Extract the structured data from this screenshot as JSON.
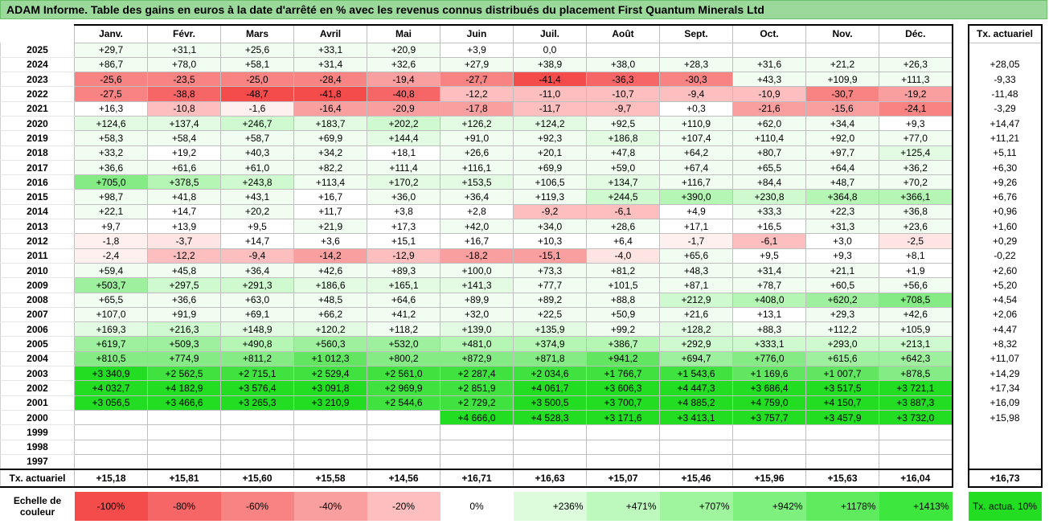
{
  "title": "ADAM Informe. Table des gains en euros à la date d'arrêté en % avec les revenus connus distribués du placement First Quantum Minerals Ltd",
  "months": [
    "Janv.",
    "Févr.",
    "Mars",
    "Avril",
    "Mai",
    "Juin",
    "Juil.",
    "Août",
    "Sept.",
    "Oct.",
    "Nov.",
    "Déc."
  ],
  "tx_header": "Tx. actuariel",
  "rows": [
    {
      "year": "2025",
      "tx": "",
      "cells": [
        "+29,7",
        "+31,1",
        "+25,6",
        "+33,1",
        "+20,9",
        "+3,9",
        "0,0",
        "",
        "",
        "",
        "",
        ""
      ]
    },
    {
      "year": "2024",
      "tx": "+28,05",
      "cells": [
        "+86,7",
        "+78,0",
        "+58,1",
        "+31,4",
        "+32,6",
        "+27,9",
        "+38,9",
        "+38,0",
        "+28,3",
        "+31,6",
        "+21,2",
        "+26,3"
      ]
    },
    {
      "year": "2023",
      "tx": "-9,33",
      "cells": [
        "-25,6",
        "-23,5",
        "-25,0",
        "-28,4",
        "-19,4",
        "-27,7",
        "-41,4",
        "-36,3",
        "-30,3",
        "+43,3",
        "+109,9",
        "+111,3"
      ]
    },
    {
      "year": "2022",
      "tx": "-11,48",
      "cells": [
        "-27,5",
        "-38,8",
        "-48,7",
        "-41,8",
        "-40,8",
        "-12,2",
        "-11,0",
        "-10,7",
        "-9,4",
        "-10,9",
        "-30,7",
        "-19,2"
      ]
    },
    {
      "year": "2021",
      "tx": "-3,29",
      "cells": [
        "+16,3",
        "-10,8",
        "-1,6",
        "-16,4",
        "-20,9",
        "-17,8",
        "-11,7",
        "-9,7",
        "+0,3",
        "-21,6",
        "-15,6",
        "-24,1"
      ]
    },
    {
      "year": "2020",
      "tx": "+14,47",
      "cells": [
        "+124,6",
        "+137,4",
        "+246,7",
        "+183,7",
        "+202,2",
        "+126,2",
        "+124,2",
        "+92,5",
        "+110,9",
        "+62,0",
        "+34,4",
        "+9,3"
      ]
    },
    {
      "year": "2019",
      "tx": "+11,21",
      "cells": [
        "+58,3",
        "+58,4",
        "+58,7",
        "+69,9",
        "+144,4",
        "+91,0",
        "+92,3",
        "+186,8",
        "+107,4",
        "+110,4",
        "+92,0",
        "+77,0"
      ]
    },
    {
      "year": "2018",
      "tx": "+5,11",
      "cells": [
        "+33,2",
        "+19,2",
        "+40,3",
        "+34,2",
        "+18,1",
        "+26,6",
        "+20,1",
        "+47,8",
        "+64,2",
        "+80,7",
        "+97,7",
        "+125,4"
      ]
    },
    {
      "year": "2017",
      "tx": "+6,30",
      "cells": [
        "+36,6",
        "+61,6",
        "+61,0",
        "+82,2",
        "+111,4",
        "+116,1",
        "+69,9",
        "+59,0",
        "+67,4",
        "+65,5",
        "+64,4",
        "+36,2"
      ]
    },
    {
      "year": "2016",
      "tx": "+9,26",
      "cells": [
        "+705,0",
        "+378,5",
        "+243,8",
        "+113,4",
        "+170,2",
        "+153,5",
        "+106,5",
        "+134,7",
        "+116,7",
        "+84,4",
        "+48,7",
        "+70,2"
      ]
    },
    {
      "year": "2015",
      "tx": "+6,76",
      "cells": [
        "+98,7",
        "+41,8",
        "+43,1",
        "+16,7",
        "+36,0",
        "+36,4",
        "+119,3",
        "+244,5",
        "+390,0",
        "+230,8",
        "+364,8",
        "+366,1"
      ]
    },
    {
      "year": "2014",
      "tx": "+0,96",
      "cells": [
        "+22,1",
        "+14,7",
        "+20,2",
        "+11,7",
        "+3,8",
        "+2,8",
        "-9,2",
        "-6,1",
        "+4,9",
        "+33,3",
        "+22,3",
        "+36,8"
      ]
    },
    {
      "year": "2013",
      "tx": "+1,60",
      "cells": [
        "+9,7",
        "+13,9",
        "+9,5",
        "+21,9",
        "+17,3",
        "+42,0",
        "+34,0",
        "+28,6",
        "+17,1",
        "+16,5",
        "+31,3",
        "+23,6"
      ]
    },
    {
      "year": "2012",
      "tx": "+0,29",
      "cells": [
        "-1,8",
        "-3,7",
        "+14,7",
        "+3,6",
        "+15,1",
        "+16,7",
        "+10,3",
        "+6,4",
        "-1,7",
        "-6,1",
        "+3,0",
        "-2,5"
      ]
    },
    {
      "year": "2011",
      "tx": "-0,22",
      "cells": [
        "-2,4",
        "-12,2",
        "-9,4",
        "-14,2",
        "-12,9",
        "-18,2",
        "-15,1",
        "-4,0",
        "+65,6",
        "+9,5",
        "+9,3",
        "+8,1"
      ]
    },
    {
      "year": "2010",
      "tx": "+2,60",
      "cells": [
        "+59,4",
        "+45,8",
        "+36,4",
        "+42,6",
        "+89,3",
        "+100,0",
        "+73,3",
        "+81,2",
        "+48,3",
        "+31,4",
        "+21,1",
        "+1,9"
      ]
    },
    {
      "year": "2009",
      "tx": "+5,20",
      "cells": [
        "+503,7",
        "+297,5",
        "+291,3",
        "+186,6",
        "+165,1",
        "+141,3",
        "+77,7",
        "+101,5",
        "+87,1",
        "+78,7",
        "+60,5",
        "+56,6"
      ]
    },
    {
      "year": "2008",
      "tx": "+4,54",
      "cells": [
        "+65,5",
        "+36,6",
        "+63,0",
        "+48,5",
        "+64,6",
        "+89,9",
        "+89,2",
        "+88,8",
        "+212,9",
        "+408,0",
        "+620,2",
        "+708,5"
      ]
    },
    {
      "year": "2007",
      "tx": "+2,06",
      "cells": [
        "+107,0",
        "+91,9",
        "+69,1",
        "+66,2",
        "+41,2",
        "+32,0",
        "+22,5",
        "+50,9",
        "+21,6",
        "+13,1",
        "+29,3",
        "+42,6"
      ]
    },
    {
      "year": "2006",
      "tx": "+4,47",
      "cells": [
        "+169,3",
        "+216,3",
        "+148,9",
        "+120,2",
        "+118,2",
        "+139,0",
        "+135,9",
        "+99,2",
        "+128,2",
        "+88,3",
        "+112,2",
        "+105,9"
      ]
    },
    {
      "year": "2005",
      "tx": "+8,32",
      "cells": [
        "+619,7",
        "+509,3",
        "+490,8",
        "+560,3",
        "+532,0",
        "+481,0",
        "+374,9",
        "+386,7",
        "+292,9",
        "+333,1",
        "+293,0",
        "+213,1"
      ]
    },
    {
      "year": "2004",
      "tx": "+11,07",
      "cells": [
        "+810,5",
        "+774,9",
        "+811,2",
        "+1 012,3",
        "+800,2",
        "+872,9",
        "+871,8",
        "+941,2",
        "+694,7",
        "+776,0",
        "+615,6",
        "+642,3"
      ]
    },
    {
      "year": "2003",
      "tx": "+14,29",
      "cells": [
        "+3 340,9",
        "+2 562,5",
        "+2 715,1",
        "+2 529,4",
        "+2 561,0",
        "+2 287,4",
        "+2 034,6",
        "+1 766,7",
        "+1 543,6",
        "+1 169,6",
        "+1 007,7",
        "+878,5"
      ]
    },
    {
      "year": "2002",
      "tx": "+17,34",
      "cells": [
        "+4 032,7",
        "+4 182,9",
        "+3 576,4",
        "+3 091,8",
        "+2 969,9",
        "+2 851,9",
        "+4 061,7",
        "+3 606,3",
        "+4 447,3",
        "+3 686,4",
        "+3 517,5",
        "+3 721,1"
      ]
    },
    {
      "year": "2001",
      "tx": "+16,09",
      "cells": [
        "+3 056,5",
        "+3 466,6",
        "+3 265,3",
        "+3 210,9",
        "+2 544,6",
        "+2 729,2",
        "+3 500,5",
        "+3 700,7",
        "+4 885,2",
        "+4 759,0",
        "+4 150,7",
        "+3 887,3"
      ]
    },
    {
      "year": "2000",
      "tx": "+15,98",
      "cells": [
        "",
        "",
        "",
        "",
        "",
        "+4 666,0",
        "+4 528,3",
        "+3 171,6",
        "+3 413,1",
        "+3 757,7",
        "+3 457,9",
        "+3 732,0"
      ]
    },
    {
      "year": "1999",
      "tx": "",
      "cells": [
        "",
        "",
        "",
        "",
        "",
        "",
        "",
        "",
        "",
        "",
        "",
        ""
      ]
    },
    {
      "year": "1998",
      "tx": "",
      "cells": [
        "",
        "",
        "",
        "",
        "",
        "",
        "",
        "",
        "",
        "",
        "",
        ""
      ]
    },
    {
      "year": "1997",
      "tx": "",
      "cells": [
        "",
        "",
        "",
        "",
        "",
        "",
        "",
        "",
        "",
        "",
        "",
        ""
      ]
    }
  ],
  "footer": {
    "label": "Tx. actuariel",
    "values": [
      "+15,18",
      "+15,81",
      "+15,60",
      "+15,58",
      "+14,56",
      "+16,71",
      "+16,63",
      "+15,07",
      "+15,46",
      "+15,96",
      "+15,63",
      "+16,04"
    ],
    "total": "+16,73"
  },
  "scale": {
    "label": "Echelle de couleur",
    "labels": [
      "-100%",
      "-80%",
      "-60%",
      "-40%",
      "-20%",
      "0%",
      "+236%",
      "+471%",
      "+707%",
      "+942%",
      "+1178%",
      "+1413%"
    ],
    "colors": [
      "#f44b4b",
      "#f66666",
      "#f88383",
      "#fa9f9f",
      "#fcbebe",
      "#ffffff",
      "#dcfcdc",
      "#bdf9bd",
      "#9ef59e",
      "#7ef07e",
      "#5eeb5e",
      "#3de73d"
    ],
    "tx_label": "Tx. actua. 10%",
    "tx_color": "#22dd22"
  }
}
